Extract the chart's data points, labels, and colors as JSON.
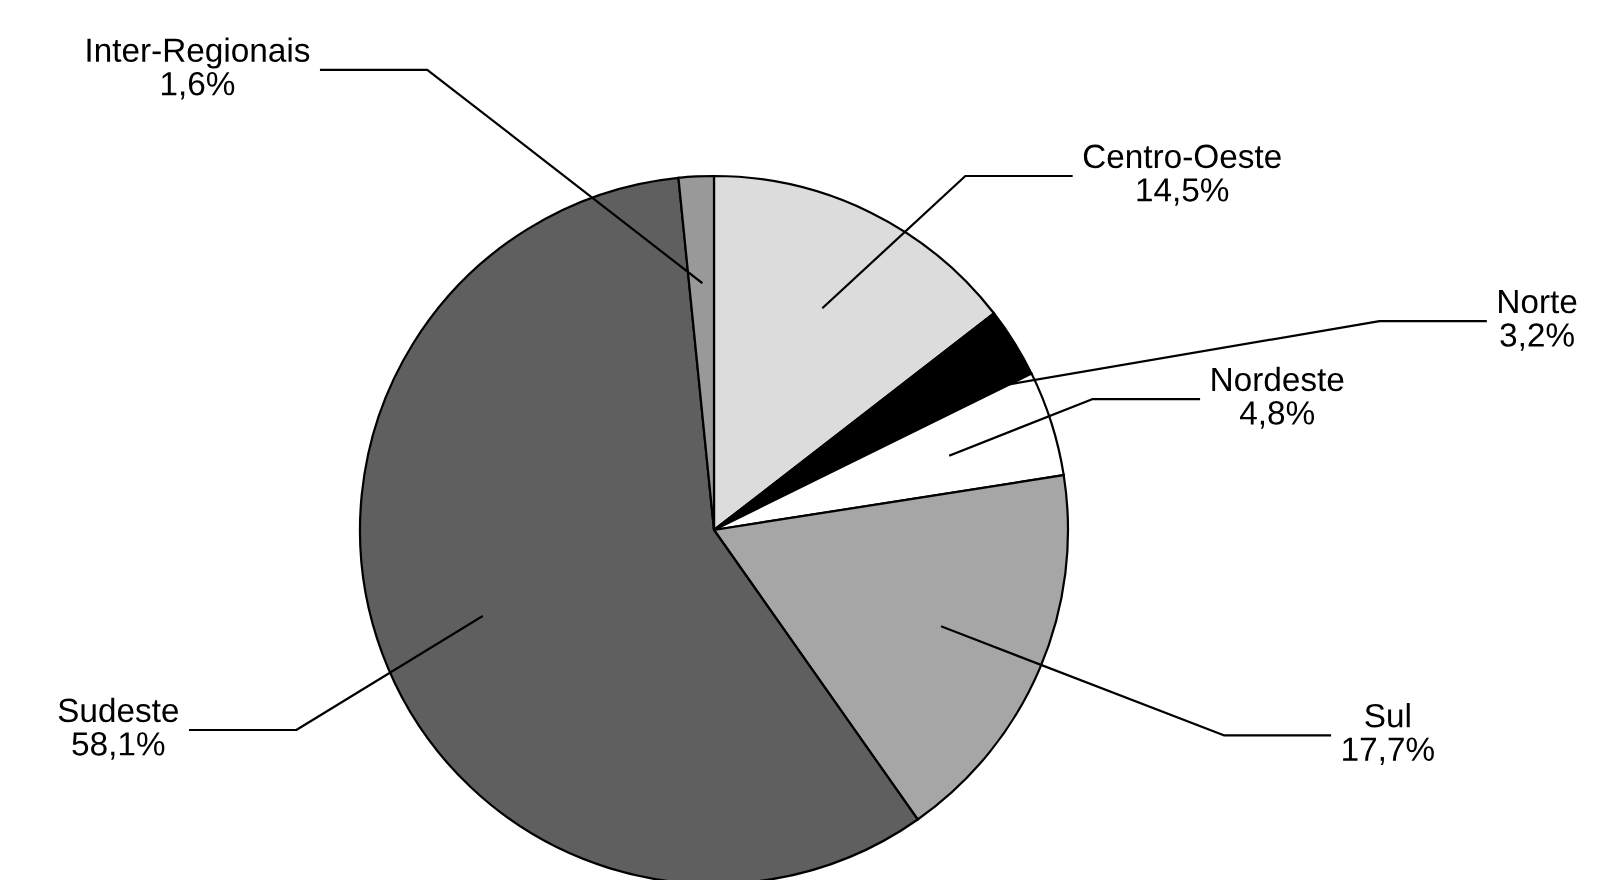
{
  "chart_data": {
    "type": "pie",
    "categories": [
      "Centro-Oeste",
      "Norte",
      "Nordeste",
      "Sul",
      "Sudeste",
      "Inter-Regionais"
    ],
    "values": [
      14.5,
      3.2,
      4.8,
      17.7,
      58.1,
      1.6
    ],
    "value_labels": [
      "14,5%",
      "3,2%",
      "4,8%",
      "17,7%",
      "58,1%",
      "1,6%"
    ],
    "colors": [
      "#dcdcdc",
      "#000000",
      "#ffffff",
      "#a6a6a6",
      "#5f5f5f",
      "#999999"
    ]
  }
}
